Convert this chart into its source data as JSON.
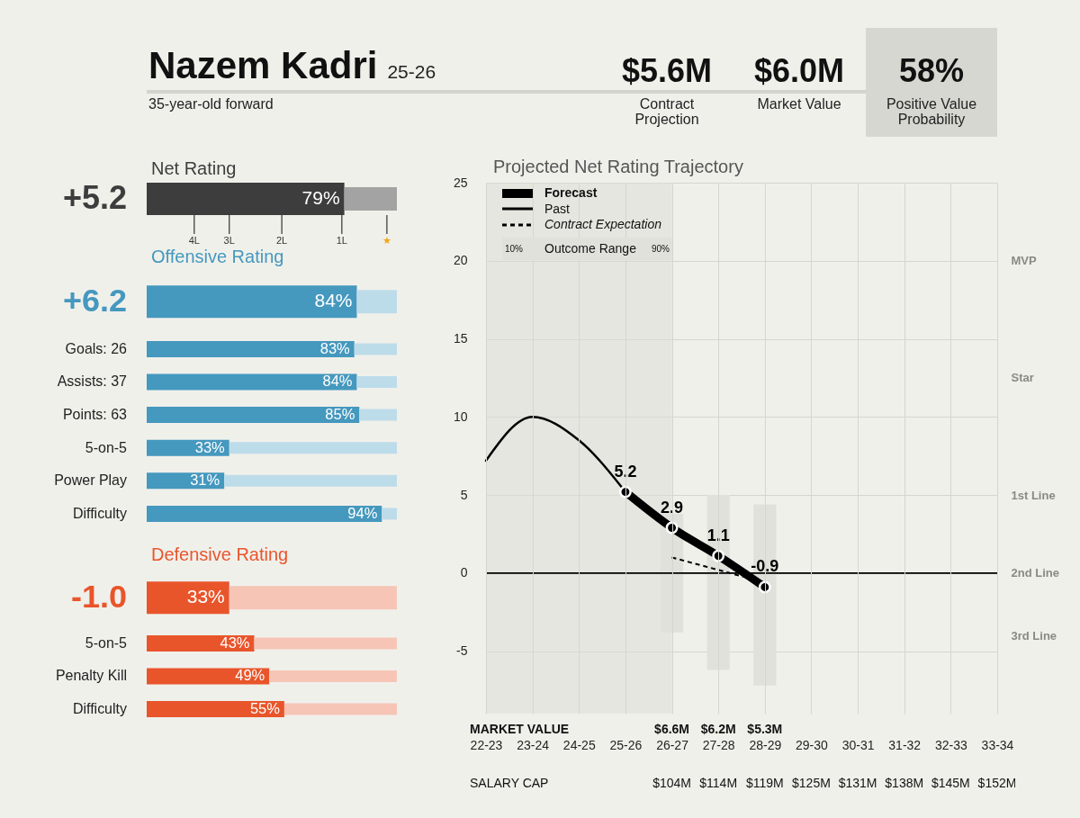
{
  "chart_data": [
    {
      "type": "other",
      "title": "Nazem Kadri",
      "subtitle": "35-year-old forward",
      "annotations": [
        "25-26",
        "$5.6M",
        "Contract Projection",
        "$6.0M",
        "Market Value",
        "58%",
        "Positive Value Probability"
      ]
    },
    {
      "type": "bar",
      "orientation": "horizontal",
      "stacked": true,
      "title": "Net Rating",
      "categories": [
        null
      ],
      "series": [
        {
          "color": "#3d3d3d",
          "values": [
            79
          ],
          "value_labels": [
            "79%"
          ]
        },
        {
          "color": "#a3a3a3",
          "values": [
            21
          ]
        }
      ],
      "tick_labels": false,
      "annotations": [
        "+5.2"
      ],
      "ref_lines": [
        {
          "axis": "x",
          "value": 19,
          "label": "4L"
        },
        {
          "axis": "x",
          "value": 33,
          "label": "3L"
        },
        {
          "axis": "x",
          "value": 54,
          "label": "2L"
        },
        {
          "axis": "x",
          "value": 78,
          "label": "1L"
        },
        {
          "axis": "x",
          "value": 96,
          "label": "★"
        }
      ]
    },
    {
      "type": "bar",
      "orientation": "horizontal",
      "stacked": true,
      "title": "Offensive Rating",
      "categories": [
        "+6.2",
        "Goals: 26",
        "Assists: 37",
        "Points: 63",
        "5-on-5",
        "Power Play",
        "Difficulty"
      ],
      "series": [
        {
          "color": "#4598be",
          "values": [
            84,
            83,
            84,
            85,
            33,
            31,
            94
          ],
          "value_labels": [
            "84%",
            "83%",
            "84%",
            "85%",
            "33%",
            "31%",
            "94%"
          ]
        },
        {
          "color": "#bddcea",
          "values": [
            16,
            17,
            16,
            15,
            67,
            69,
            6
          ]
        }
      ],
      "tick_labels": "y"
    },
    {
      "type": "bar",
      "orientation": "horizontal",
      "stacked": true,
      "title": "Defensive Rating",
      "categories": [
        "-1.0",
        "5-on-5",
        "Penalty Kill",
        "Difficulty"
      ],
      "series": [
        {
          "color": "#e9552b",
          "values": [
            33,
            43,
            49,
            55
          ],
          "value_labels": [
            "33%",
            "43%",
            "49%",
            "55%"
          ]
        },
        {
          "color": "#f6c5b6",
          "values": [
            67,
            57,
            51,
            45
          ]
        }
      ],
      "tick_labels": "y"
    },
    {
      "type": "line",
      "title": "Projected Net Rating Trajectory",
      "categories": [
        "22-23",
        "23-24",
        "24-25",
        "25-26",
        "26-27",
        "27-28",
        "28-29",
        "29-30",
        "30-31",
        "31-32",
        "32-33",
        "33-34"
      ],
      "series": [
        {
          "name": "Forecast",
          "color": "#000000",
          "marker": "circle",
          "data_labels": true,
          "values": [
            null,
            null,
            null,
            5.2,
            2.9,
            1.1,
            -0.9,
            null,
            null,
            null,
            null,
            null
          ]
        },
        {
          "name": "Past",
          "color": "#000000",
          "values": [
            7.2,
            10.0,
            8.5,
            5.2,
            null,
            null,
            null,
            null,
            null,
            null,
            null,
            null
          ]
        },
        {
          "name": "Contract Expectation",
          "color": "#000000",
          "line_style": "dashed",
          "values": [
            null,
            null,
            null,
            null,
            1.0,
            0.2,
            -0.6,
            null,
            null,
            null,
            null,
            null
          ]
        },
        {
          "name": "Outcome Range",
          "type": "bar",
          "color": "#e1e1dc",
          "base": [
            null,
            null,
            null,
            null,
            -3.8,
            -6.2,
            -7.2,
            null,
            null,
            null,
            null,
            null
          ],
          "values": [
            null,
            null,
            null,
            null,
            7.6,
            11.2,
            11.6,
            null,
            null,
            null,
            null,
            null
          ]
        }
      ],
      "ylim": [
        -9,
        25
      ],
      "yticks": [
        -5,
        0,
        5,
        10,
        15,
        20,
        25
      ],
      "y2_categories": [
        null,
        null,
        null,
        null,
        null,
        null,
        null,
        null,
        null,
        null,
        "MVP",
        null,
        null,
        null,
        null,
        null,
        null,
        null,
        null,
        null,
        null,
        null,
        null,
        null,
        null,
        "Star",
        null,
        null,
        null,
        null,
        null,
        null,
        null,
        null,
        null,
        null,
        null,
        null,
        null,
        null,
        "1st Line",
        null,
        null,
        null,
        null,
        null,
        null,
        null,
        null,
        null,
        "2nd Line",
        null,
        null,
        null,
        null,
        null,
        null,
        null,
        "3rd Line",
        null,
        null,
        null,
        null,
        null,
        null,
        null,
        null,
        null,
        null
      ],
      "grid": true,
      "legend": "top left",
      "ref_lines": [
        {
          "axis": "y",
          "value": 0,
          "color": "#000000"
        }
      ],
      "bands": [
        {
          "axis": "x",
          "from": "22-23",
          "to": "26-27",
          "color": "#dcdcd6"
        }
      ],
      "annotations": [
        "10%",
        "90%"
      ]
    },
    {
      "type": "heatmap",
      "categories": [
        null,
        null,
        null,
        null,
        null,
        null,
        null,
        null,
        null,
        null,
        null,
        null
      ],
      "y_categories": [
        "MARKET VALUE",
        "SALARY CAP"
      ],
      "cells": [
        [
          null,
          null,
          null,
          null,
          6.6,
          6.2,
          5.3,
          null,
          null,
          null,
          null,
          null
        ],
        [
          null,
          null,
          null,
          null,
          104,
          114,
          119,
          125,
          131,
          138,
          145,
          152
        ]
      ],
      "cell_labels": [
        [
          null,
          null,
          null,
          null,
          "$6.6M",
          "$6.2M",
          "$5.3M",
          null,
          null,
          null,
          null,
          null
        ],
        [
          null,
          null,
          null,
          null,
          "$104M",
          "$114M",
          "$119M",
          "$125M",
          "$131M",
          "$138M",
          "$145M",
          "$152M"
        ]
      ]
    }
  ]
}
